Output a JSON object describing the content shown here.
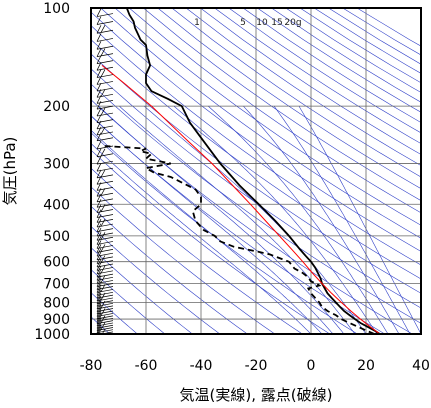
{
  "chart_data": {
    "type": "line",
    "title": "",
    "xlabel": "気温(実線), 露点(破線)",
    "ylabel": "気圧(hPa)",
    "xlim": [
      -80,
      40
    ],
    "ylim": [
      1000,
      100
    ],
    "y_scale": "log",
    "grid": true,
    "x_ticks": [
      -80,
      -60,
      -40,
      -20,
      0,
      20,
      40
    ],
    "x_tick_labels": [
      "-80",
      "-60",
      "-40",
      "-20",
      "0",
      "20",
      "40"
    ],
    "y_ticks": [
      100,
      200,
      300,
      400,
      500,
      600,
      700,
      800,
      900,
      1000
    ],
    "y_tick_labels": [
      "100",
      "200",
      "300",
      "400",
      "500",
      "600",
      "700",
      "800",
      "900",
      "1000"
    ],
    "mixing_ratio_labels": [
      "1",
      "5",
      "10",
      "15",
      "20g"
    ],
    "series": [
      {
        "style": "solid",
        "color": "#000000",
        "pressure": [
          1000,
          975,
          950,
          925,
          900,
          875,
          850,
          825,
          800,
          775,
          750,
          725,
          700,
          675,
          650,
          625,
          600,
          575,
          550,
          500,
          450,
          400,
          350,
          300,
          250,
          225,
          200,
          190,
          180,
          170,
          160,
          150,
          140,
          130,
          125,
          120,
          115,
          110,
          105,
          100
        ],
        "values": [
          25.0,
          23.0,
          20.5,
          18.0,
          16.0,
          14.0,
          12.0,
          10.5,
          9.0,
          7.5,
          6.0,
          5.0,
          4.0,
          3.5,
          2.5,
          1.5,
          0.0,
          -2.0,
          -4.0,
          -8.0,
          -13.0,
          -19.0,
          -26.0,
          -33.0,
          -40.0,
          -44.0,
          -47.0,
          -52.0,
          -58.0,
          -60.0,
          -60.0,
          -58.5,
          -59.5,
          -60.0,
          -62.0,
          -63.0,
          -64.0,
          -64.5,
          -66.0,
          -67.0
        ]
      },
      {
        "style": "dashed",
        "color": "#000000",
        "pressure": [
          1000,
          975,
          950,
          925,
          900,
          875,
          850,
          825,
          800,
          775,
          750,
          725,
          710,
          700,
          690,
          670,
          650,
          630,
          600,
          570,
          560,
          540,
          520,
          500,
          480,
          450,
          420,
          400,
          380,
          360,
          330,
          320,
          310,
          300,
          290,
          280,
          275,
          270,
          265
        ],
        "values": [
          23.0,
          20.0,
          17.0,
          14.0,
          11.0,
          9.0,
          6.0,
          4.0,
          3.0,
          1.5,
          0.0,
          -1.0,
          3.0,
          2.0,
          0.0,
          -1.0,
          -3.0,
          -6.0,
          -8.0,
          -15.0,
          -19.0,
          -28.0,
          -33.0,
          -35.0,
          -39.0,
          -42.0,
          -43.0,
          -40.0,
          -40.0,
          -42.0,
          -51.0,
          -57.0,
          -60.0,
          -51.0,
          -60.0,
          -58.0,
          -62.0,
          -60.0,
          -75.0
        ]
      },
      {
        "style": "solid",
        "color": "#ff0000",
        "pressure": [
          1000,
          950,
          900,
          850,
          800,
          750,
          700,
          650,
          600,
          550,
          500,
          450,
          400,
          350,
          300,
          250,
          200,
          170,
          150
        ],
        "values": [
          25.0,
          21.5,
          18.0,
          14.5,
          11.0,
          7.5,
          4.0,
          0.5,
          -3.0,
          -7.0,
          -11.5,
          -16.5,
          -22.0,
          -28.5,
          -36.0,
          -46.0,
          -58.0,
          -68.0,
          -76.0
        ]
      }
    ],
    "wind_barbs": {
      "x_position_value": -72,
      "pressures": [
        1000,
        985,
        970,
        955,
        940,
        925,
        910,
        895,
        880,
        865,
        850,
        835,
        820,
        805,
        790,
        775,
        760,
        745,
        730,
        715,
        700,
        685,
        670,
        655,
        640,
        625,
        610,
        595,
        580,
        565,
        550,
        535,
        520,
        505,
        490,
        475,
        460,
        445,
        430,
        415,
        400,
        385,
        370,
        355,
        340,
        325,
        310,
        295,
        280,
        265,
        250,
        240,
        230,
        220,
        210,
        200,
        192,
        184,
        176,
        168,
        160,
        152,
        145,
        138,
        131,
        124,
        117,
        110,
        104
      ]
    }
  }
}
